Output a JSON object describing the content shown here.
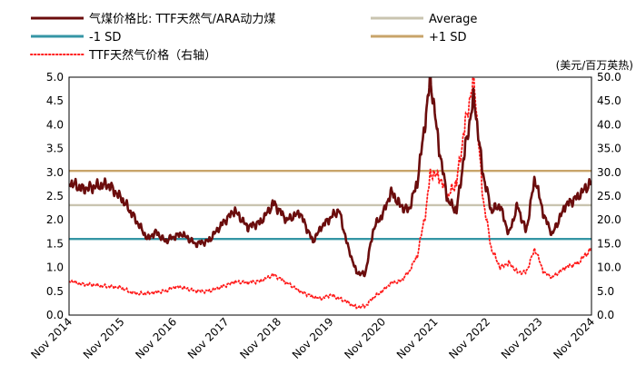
{
  "chart_data": {
    "type": "line",
    "title": "",
    "y_left": {
      "label": "",
      "ylim": [
        0,
        5
      ],
      "ticks": [
        "0.0",
        "0.5",
        "1.0",
        "1.5",
        "2.0",
        "2.5",
        "3.0",
        "3.5",
        "4.0",
        "4.5",
        "5.0"
      ]
    },
    "y_right": {
      "label": "(美元/百万英热)",
      "ylim": [
        0,
        50
      ],
      "ticks": [
        "0.0",
        "5.0",
        "10.0",
        "15.0",
        "20.0",
        "25.0",
        "30.0",
        "35.0",
        "40.0",
        "45.0",
        "50.0"
      ]
    },
    "x_axis": {
      "range": [
        "2014-11",
        "2024-11"
      ],
      "tick_labels": [
        "Nov 2014",
        "Nov 2015",
        "Nov 2016",
        "Nov 2017",
        "Nov 2018",
        "Nov 2019",
        "Nov 2020",
        "Nov 2021",
        "Nov 2022",
        "Nov 2023",
        "Nov 2024"
      ]
    },
    "legend": {
      "placement": "top"
    },
    "series": [
      {
        "name": "气煤价格比: TTF天然气/ARA动力煤",
        "axis": "left",
        "color": "#6b0d0d",
        "style": "solid",
        "x": [
          "2014-11",
          "2015-02",
          "2015-05",
          "2015-08",
          "2015-11",
          "2016-01",
          "2016-03",
          "2016-05",
          "2016-07",
          "2016-09",
          "2016-11",
          "2017-01",
          "2017-04",
          "2017-07",
          "2017-10",
          "2018-01",
          "2018-04",
          "2018-07",
          "2018-10",
          "2019-01",
          "2019-04",
          "2019-07",
          "2019-09",
          "2019-11",
          "2020-01",
          "2020-03",
          "2020-05",
          "2020-07",
          "2020-09",
          "2020-11",
          "2021-01",
          "2021-03",
          "2021-05",
          "2021-07",
          "2021-09",
          "2021-10",
          "2021-12",
          "2022-02",
          "2022-04",
          "2022-06",
          "2022-08",
          "2022-10",
          "2022-12",
          "2023-02",
          "2023-04",
          "2023-06",
          "2023-08",
          "2023-10",
          "2023-12",
          "2024-02",
          "2024-05",
          "2024-08",
          "2024-11"
        ],
        "values": [
          2.8,
          2.65,
          2.7,
          2.75,
          2.45,
          2.2,
          1.9,
          1.6,
          1.75,
          1.55,
          1.65,
          1.7,
          1.5,
          1.55,
          1.9,
          2.2,
          1.85,
          1.95,
          2.35,
          2.0,
          2.15,
          1.55,
          1.85,
          2.05,
          2.2,
          1.45,
          0.9,
          0.85,
          1.85,
          2.1,
          2.6,
          2.3,
          2.2,
          2.8,
          4.2,
          5.0,
          3.5,
          2.4,
          2.2,
          3.5,
          4.6,
          3.0,
          2.2,
          2.3,
          1.7,
          2.3,
          1.75,
          2.9,
          2.1,
          1.7,
          2.3,
          2.5,
          2.8
        ]
      },
      {
        "name": "TTF天然气价格（右轴）",
        "axis": "right",
        "color": "#ff1a1a",
        "style": "dotted",
        "x": [
          "2014-11",
          "2015-02",
          "2015-05",
          "2015-08",
          "2015-11",
          "2016-01",
          "2016-03",
          "2016-05",
          "2016-07",
          "2016-09",
          "2016-11",
          "2017-01",
          "2017-04",
          "2017-07",
          "2017-10",
          "2018-01",
          "2018-04",
          "2018-07",
          "2018-10",
          "2019-01",
          "2019-04",
          "2019-07",
          "2019-09",
          "2019-11",
          "2020-01",
          "2020-03",
          "2020-05",
          "2020-07",
          "2020-09",
          "2020-11",
          "2021-01",
          "2021-03",
          "2021-05",
          "2021-07",
          "2021-09",
          "2021-10",
          "2021-12",
          "2022-02",
          "2022-04",
          "2022-06",
          "2022-08",
          "2022-10",
          "2022-12",
          "2023-02",
          "2023-04",
          "2023-06",
          "2023-08",
          "2023-10",
          "2023-12",
          "2024-02",
          "2024-05",
          "2024-08",
          "2024-11"
        ],
        "values": [
          7.2,
          6.5,
          6.3,
          6.0,
          5.8,
          4.8,
          4.5,
          4.6,
          4.8,
          5.0,
          5.9,
          5.8,
          5.1,
          5.0,
          5.9,
          7.0,
          6.8,
          7.2,
          8.5,
          6.8,
          5.0,
          3.9,
          3.4,
          4.3,
          3.5,
          2.7,
          1.6,
          1.8,
          3.8,
          5.0,
          6.8,
          7.0,
          9.0,
          12.5,
          22.0,
          30.0,
          29.0,
          25.0,
          28.0,
          40.0,
          50.0,
          25.0,
          14.0,
          10.0,
          11.0,
          9.0,
          9.0,
          14.0,
          9.0,
          8.0,
          10.0,
          11.0,
          14.0
        ]
      },
      {
        "name": "Average",
        "axis": "left",
        "color": "#c9c4b0",
        "style": "solid",
        "values": [
          2.31
        ]
      },
      {
        "name": "-1 SD",
        "axis": "left",
        "color": "#3596a5",
        "style": "solid",
        "values": [
          1.6
        ]
      },
      {
        "name": "+1 SD",
        "axis": "left",
        "color": "#c8a46a",
        "style": "solid",
        "values": [
          3.03
        ]
      }
    ]
  }
}
